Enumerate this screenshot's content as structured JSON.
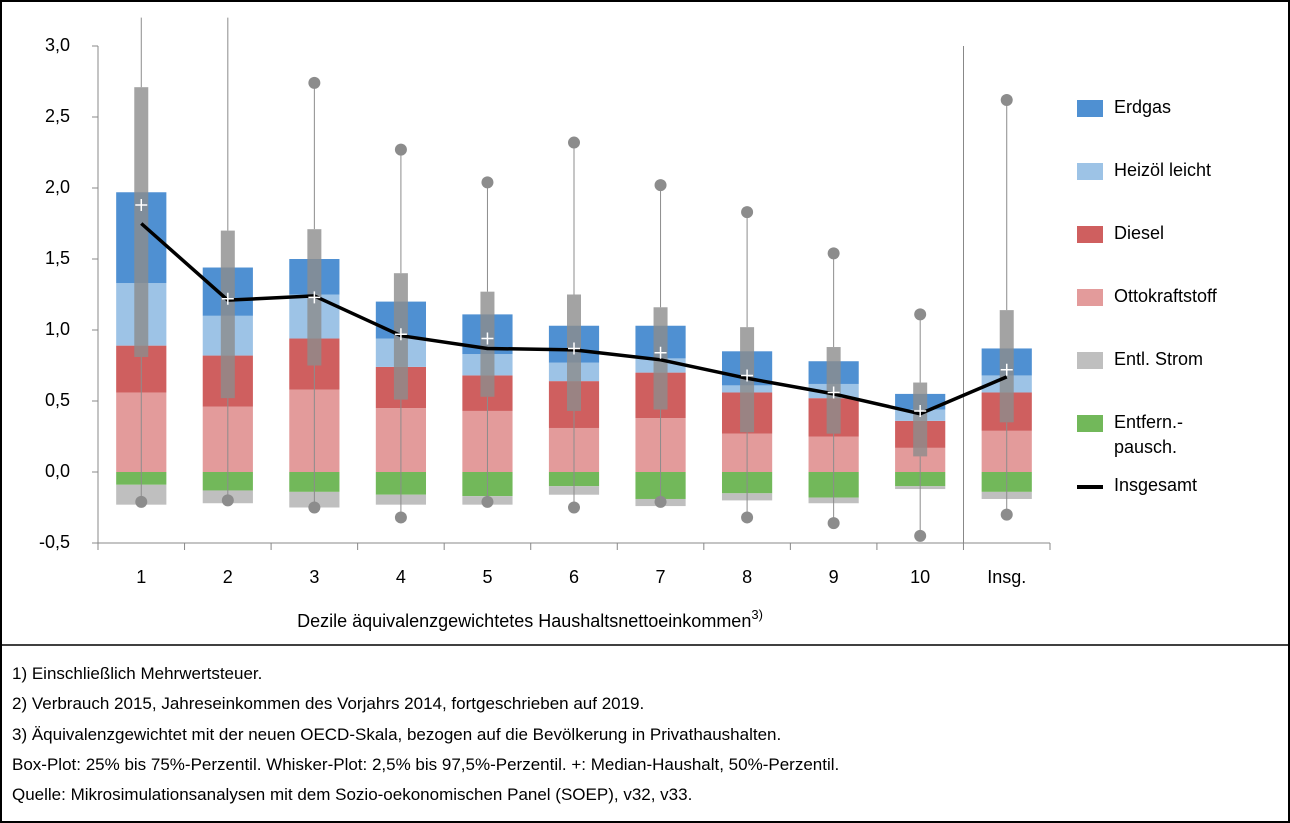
{
  "chart_data": {
    "type": "bar",
    "categories": [
      "1",
      "2",
      "3",
      "4",
      "5",
      "6",
      "7",
      "8",
      "9",
      "10",
      "Insg."
    ],
    "x_label": "Dezile äquivalenzgewichtetes Haushaltsnettoeinkommen",
    "x_label_note": "3)",
    "ylim": [
      -0.5,
      3.0
    ],
    "yticks": [
      {
        "value": -0.5,
        "label": "-0,5"
      },
      {
        "value": 0,
        "label": "0,0"
      },
      {
        "value": 0.5,
        "label": "0,5"
      },
      {
        "value": 1.0,
        "label": "1,0"
      },
      {
        "value": 1.5,
        "label": "1,5"
      },
      {
        "value": 2.0,
        "label": "2,0"
      },
      {
        "value": 2.5,
        "label": "2,5"
      },
      {
        "value": 3.0,
        "label": "3,0"
      }
    ],
    "series": [
      {
        "name": "Erdgas",
        "color": "#4f90d2",
        "values": [
          0.64,
          0.34,
          0.25,
          0.26,
          0.28,
          0.26,
          0.23,
          0.24,
          0.16,
          0.11,
          0.19
        ]
      },
      {
        "name": "Heizöl leicht",
        "color": "#9dc3e6",
        "values": [
          0.44,
          0.28,
          0.31,
          0.2,
          0.15,
          0.13,
          0.1,
          0.05,
          0.1,
          0.08,
          0.12
        ]
      },
      {
        "name": "Diesel",
        "color": "#cf5f5f",
        "values": [
          0.33,
          0.36,
          0.36,
          0.29,
          0.25,
          0.33,
          0.32,
          0.29,
          0.27,
          0.19,
          0.27
        ]
      },
      {
        "name": "Ottokraftstoff",
        "color": "#e39b9b",
        "values": [
          0.56,
          0.46,
          0.58,
          0.45,
          0.43,
          0.31,
          0.38,
          0.27,
          0.25,
          0.17,
          0.29
        ]
      },
      {
        "name": "Entl. Strom",
        "color": "#bfbfbf",
        "values": [
          -0.14,
          -0.09,
          -0.11,
          -0.07,
          -0.06,
          -0.06,
          -0.05,
          -0.05,
          -0.04,
          -0.02,
          -0.05
        ]
      },
      {
        "name": "Entfern.-pausch.",
        "color": "#72b85a",
        "values": [
          -0.09,
          -0.13,
          -0.14,
          -0.16,
          -0.17,
          -0.1,
          -0.19,
          -0.15,
          -0.18,
          -0.1,
          -0.14
        ]
      },
      {
        "name": "Insgesamt",
        "type": "line",
        "color": "#000000",
        "values": [
          1.75,
          1.21,
          1.24,
          0.96,
          0.87,
          0.86,
          0.79,
          0.66,
          0.55,
          0.41,
          0.67
        ]
      }
    ],
    "boxplot": {
      "color": "#8c8c8c",
      "q1": [
        0.81,
        0.52,
        0.75,
        0.51,
        0.53,
        0.43,
        0.44,
        0.28,
        0.27,
        0.11,
        0.35
      ],
      "q3": [
        2.71,
        1.7,
        1.71,
        1.4,
        1.27,
        1.25,
        1.16,
        1.02,
        0.88,
        0.63,
        1.14
      ],
      "median": [
        1.88,
        1.22,
        1.23,
        0.97,
        0.94,
        0.87,
        0.84,
        0.68,
        0.56,
        0.43,
        0.72
      ],
      "whisker_low": [
        -0.21,
        -0.2,
        -0.25,
        -0.32,
        -0.21,
        -0.25,
        -0.21,
        -0.32,
        -0.36,
        -0.45,
        -0.3
      ],
      "whisker_high": [
        3.2,
        3.2,
        2.74,
        2.27,
        2.04,
        2.32,
        2.02,
        1.83,
        1.54,
        1.11,
        2.62
      ]
    },
    "legend": "right",
    "notes": [
      "1) Einschließlich Mehrwertsteuer.",
      "2) Verbrauch 2015, Jahreseinkommen des Vorjahrs 2014, fortgeschrieben auf 2019.",
      "3) Äquivalenzgewichtet mit der neuen OECD-Skala, bezogen auf die Bevölkerung in Privathaushalten.",
      "Box-Plot: 25% bis 75%-Perzentil. Whisker-Plot: 2,5% bis 97,5%-Perzentil. +: Median-Haushalt, 50%-Perzentil.",
      "Quelle: Mikrosimulationsanalysen mit dem Sozio-oekonomischen Panel (SOEP), v32, v33."
    ]
  }
}
